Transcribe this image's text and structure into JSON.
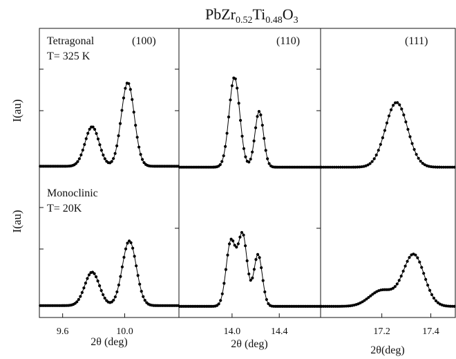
{
  "chart_data": {
    "type": "scatter",
    "title": {
      "base": "PbZr",
      "sub1": "0.52",
      "mid": "Ti",
      "sub2": "0.48",
      "end": "O",
      "sub3": "3"
    },
    "ylabel": "I(au)",
    "xlabel": "2θ (deg)",
    "xlabel_right": "2θ(deg)",
    "phases": [
      {
        "name": "Tetragonal",
        "temperature": "T= 325 K"
      },
      {
        "name": "Monoclinic",
        "temperature": "T= 20K"
      }
    ],
    "panels": [
      {
        "reflection": "(100)",
        "xlim": [
          9.45,
          10.35
        ],
        "xticks": [
          {
            "value": 9.6,
            "label": "9.6"
          },
          {
            "value": 10.0,
            "label": "10.0"
          }
        ],
        "rows": [
          {
            "peaks": [
              [
                9.79,
                0.44,
                0.045
              ],
              [
                10.02,
                0.93,
                0.042
              ]
            ],
            "baseline": 0.02,
            "npts": 82
          },
          {
            "peaks": [
              [
                9.79,
                0.44,
                0.047
              ],
              [
                10.03,
                0.85,
                0.045
              ]
            ],
            "baseline": 0.02,
            "npts": 80
          }
        ]
      },
      {
        "reflection": "(110)",
        "xlim": [
          13.55,
          14.75
        ],
        "xticks": [
          {
            "value": 14.0,
            "label": "14.0"
          },
          {
            "value": 14.4,
            "label": "14.4"
          }
        ],
        "rows": [
          {
            "peaks": [
              [
                14.02,
                1.0,
                0.045
              ],
              [
                14.23,
                0.62,
                0.036
              ]
            ],
            "baseline": 0.01,
            "npts": 84
          },
          {
            "peaks": [
              [
                13.99,
                0.85,
                0.04
              ],
              [
                14.09,
                0.93,
                0.038
              ],
              [
                14.22,
                0.68,
                0.036
              ]
            ],
            "baseline": 0.01,
            "npts": 80
          }
        ]
      },
      {
        "reflection": "(111)",
        "xlim": [
          16.95,
          17.5
        ],
        "xticks": [
          {
            "value": 17.2,
            "label": "17.2"
          },
          {
            "value": 17.4,
            "label": "17.4"
          }
        ],
        "rows": [
          {
            "peaks": [
              [
                17.26,
                0.72,
                0.045
              ]
            ],
            "baseline": 0.01,
            "npts": 64
          },
          {
            "peaks": [
              [
                17.2,
                0.21,
                0.05
              ],
              [
                17.33,
                0.68,
                0.043
              ]
            ],
            "baseline": 0.01,
            "npts": 66
          }
        ]
      }
    ]
  }
}
